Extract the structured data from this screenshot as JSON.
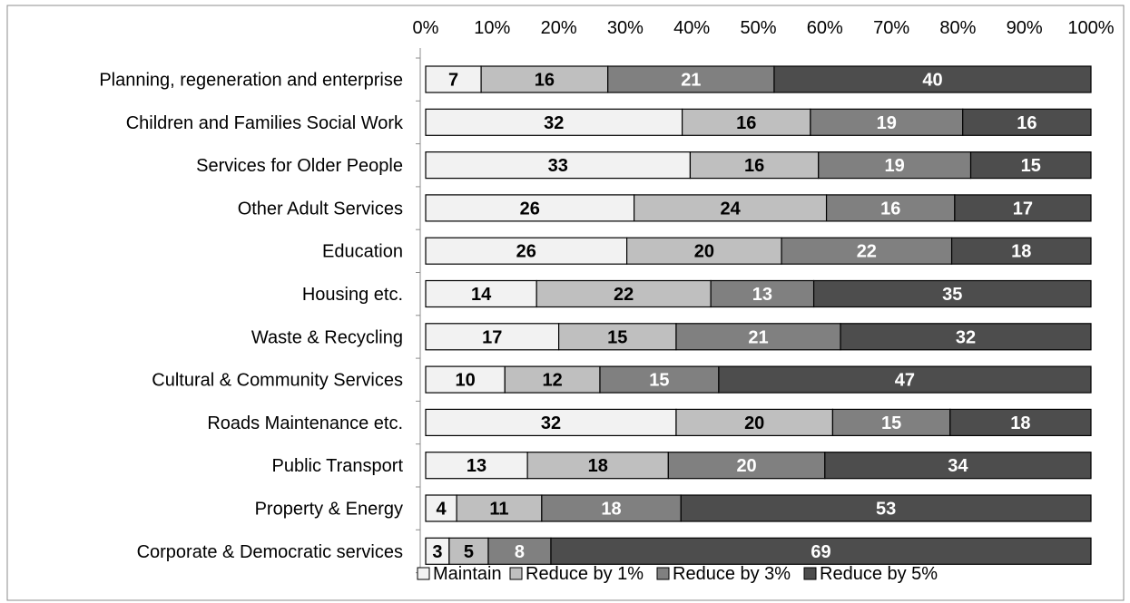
{
  "chart_data": {
    "type": "bar",
    "orientation": "horizontal",
    "stacked": "percent",
    "title": "",
    "xlabel": "",
    "ylabel": "",
    "xlim": [
      0,
      100
    ],
    "x_ticks": [
      "0%",
      "10%",
      "20%",
      "30%",
      "40%",
      "50%",
      "60%",
      "70%",
      "80%",
      "90%",
      "100%"
    ],
    "legend_position": "bottom",
    "categories": [
      "Planning, regeneration and enterprise",
      "Children and Families Social Work",
      "Services for Older People",
      "Other Adult Services",
      "Education",
      "Housing etc.",
      "Waste & Recycling",
      "Cultural & Community Services",
      "Roads Maintenance etc.",
      "Public Transport",
      "Property & Energy",
      "Corporate & Democratic services"
    ],
    "series": [
      {
        "name": "Maintain",
        "color": "#f2f2f2",
        "label_color": "#000000",
        "values": [
          7,
          32,
          33,
          26,
          26,
          14,
          17,
          10,
          32,
          13,
          4,
          3
        ]
      },
      {
        "name": "Reduce by 1%",
        "color": "#bfbfbf",
        "label_color": "#000000",
        "values": [
          16,
          16,
          16,
          24,
          20,
          22,
          15,
          12,
          20,
          18,
          11,
          5
        ]
      },
      {
        "name": "Reduce by 3%",
        "color": "#808080",
        "label_color": "#ffffff",
        "values": [
          21,
          19,
          19,
          16,
          22,
          13,
          21,
          15,
          15,
          20,
          18,
          8
        ]
      },
      {
        "name": "Reduce by 5%",
        "color": "#4d4d4d",
        "label_color": "#ffffff",
        "values": [
          40,
          16,
          15,
          17,
          18,
          35,
          32,
          47,
          18,
          34,
          53,
          69
        ]
      }
    ]
  }
}
